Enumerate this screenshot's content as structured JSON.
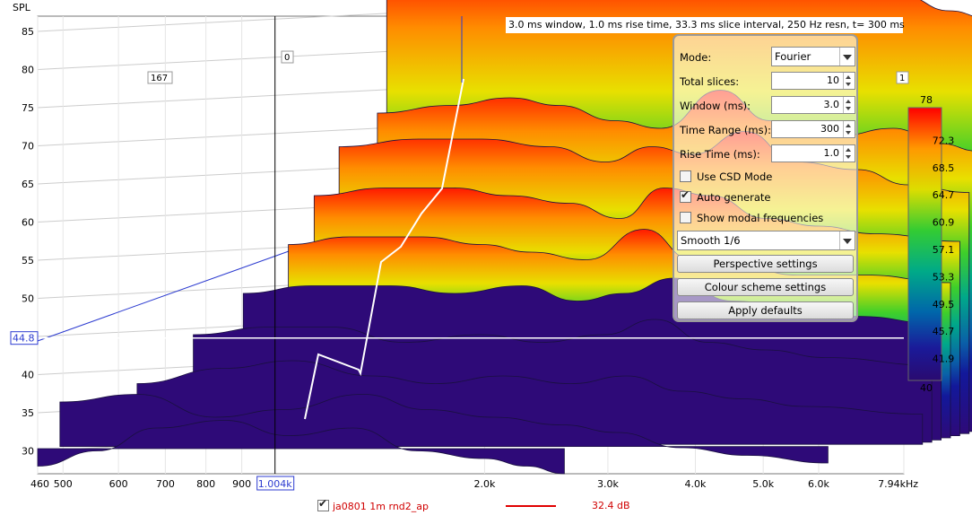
{
  "title": "3.0 ms window, 1.0 ms rise time, 33.3 ms slice interval, 250 Hz resn, t= 300 ms",
  "chart_data": {
    "type": "area",
    "ylabel": "SPL",
    "y_axis": {
      "min": 27,
      "max": 87,
      "ticks": [
        30,
        35,
        40,
        45,
        50,
        55,
        60,
        65,
        70,
        75,
        80,
        85
      ]
    },
    "x_axis": {
      "scale": "log",
      "min": 460,
      "max": 7940,
      "ticks": [
        {
          "value": 460,
          "label": "460"
        },
        {
          "value": 500,
          "label": "500"
        },
        {
          "value": 600,
          "label": "600"
        },
        {
          "value": 700,
          "label": "700"
        },
        {
          "value": 800,
          "label": "800"
        },
        {
          "value": 900,
          "label": "900"
        },
        {
          "value": 2000,
          "label": "2.0k"
        },
        {
          "value": 3000,
          "label": "3.0k"
        },
        {
          "value": 4000,
          "label": "4.0k"
        },
        {
          "value": 5000,
          "label": "5.0k"
        },
        {
          "value": 6000,
          "label": "6.0k"
        },
        {
          "value": 7940,
          "label": "7.94kHz"
        }
      ]
    },
    "cursor": {
      "freq_label": "1.004k",
      "spl_label": "44.8"
    },
    "marker_labels": [
      "167",
      "0",
      "1"
    ],
    "colorbar": {
      "max": "78",
      "min": "40",
      "ticks": [
        "72.3",
        "68.5",
        "64.7",
        "60.9",
        "57.1",
        "53.3",
        "49.5",
        "45.7",
        "41.9"
      ]
    },
    "slices": [
      {
        "x": [
          1100,
          1400,
          1800,
          2200,
          2800,
          3500,
          4200,
          5000,
          6000,
          7000,
          7940
        ],
        "spl": [
          78,
          78.5,
          79,
          79,
          78.5,
          79,
          80,
          79,
          77,
          75,
          74
        ]
      },
      {
        "x": [
          1100,
          1400,
          1700,
          2000,
          2400,
          2800,
          3400,
          4000,
          5000,
          6000,
          7000,
          7940
        ],
        "spl": [
          63,
          64,
          65,
          64,
          62,
          61,
          66,
          62,
          60,
          61,
          59,
          58
        ]
      },
      {
        "x": [
          1000,
          1300,
          1600,
          2000,
          2400,
          2800,
          3200,
          3800,
          4500,
          5500,
          6500,
          7940
        ],
        "spl": [
          60,
          61,
          61,
          60,
          58,
          60,
          59,
          62,
          58,
          57,
          55,
          54
        ]
      },
      {
        "x": [
          950,
          1200,
          1500,
          1800,
          2200,
          2600,
          3000,
          3500,
          4200,
          5000,
          6000,
          7940
        ],
        "spl": [
          55,
          56,
          56,
          55,
          54,
          52,
          56,
          55,
          52,
          51,
          50,
          49
        ]
      },
      {
        "x": [
          900,
          1100,
          1400,
          1700,
          2000,
          2400,
          2900,
          3400,
          4000,
          4800,
          6000,
          7940
        ],
        "spl": [
          50,
          51,
          51,
          50,
          49,
          48,
          52,
          48,
          47,
          46,
          46,
          45
        ]
      },
      {
        "x": [
          800,
          1000,
          1300,
          1600,
          2000,
          2400,
          2800,
          3300,
          4000,
          5000,
          6000,
          7940
        ],
        "spl": [
          45,
          46,
          46,
          45,
          46,
          44,
          45,
          47,
          44,
          43,
          42,
          41
        ]
      },
      {
        "x": [
          700,
          900,
          1100,
          1400,
          1800,
          2200,
          2700,
          3200,
          3800,
          4600,
          5600,
          7940
        ],
        "spl": [
          41,
          42,
          42,
          40,
          41,
          40,
          41,
          43,
          40,
          39,
          38,
          37
        ]
      },
      {
        "x": [
          600,
          800,
          1000,
          1300,
          1600,
          2000,
          2500,
          3000,
          3600,
          4400,
          5400,
          7940
        ],
        "spl": [
          36,
          38,
          39,
          37,
          36,
          37,
          36,
          37,
          35,
          34,
          33,
          32
        ]
      },
      {
        "x": [
          480,
          620,
          800,
          1000,
          1300,
          1600,
          2000,
          2500,
          3000,
          3700,
          4600,
          6000
        ],
        "spl": [
          35,
          36,
          33,
          34,
          36,
          34,
          33,
          32,
          31,
          29,
          28,
          27
        ]
      },
      {
        "x": [
          460,
          560,
          680,
          850,
          1050,
          1300,
          1600,
          2000,
          2300,
          2600
        ],
        "spl": [
          28,
          30,
          33,
          34,
          32,
          33,
          30,
          29,
          28,
          27
        ]
      }
    ]
  },
  "panel": {
    "mode_label": "Mode:",
    "mode_value": "Fourier",
    "total_slices_label": "Total slices:",
    "total_slices_value": "10",
    "window_label": "Window (ms):",
    "window_value": "3.0",
    "time_range_label": "Time Range (ms):",
    "time_range_value": "300",
    "rise_time_label": "Rise Time (ms):",
    "rise_time_value": "1.0",
    "use_csd_label": "Use CSD Mode",
    "auto_generate_label": "Auto generate",
    "show_modal_label": "Show modal frequencies",
    "smoothing_value": "Smooth 1/6",
    "perspective_label": "Perspective settings",
    "colour_scheme_label": "Colour scheme settings",
    "apply_defaults_label": "Apply defaults"
  },
  "legend": {
    "name": "ja0801 1m rnd2_ap",
    "value": "32.4 dB",
    "color": "#e00000"
  }
}
